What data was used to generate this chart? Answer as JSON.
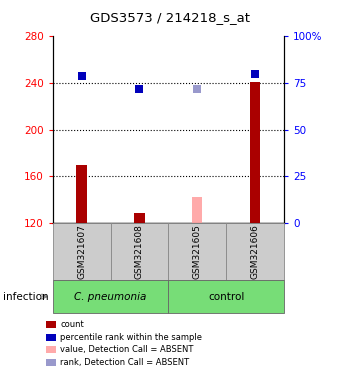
{
  "title": "GDS3573 / 214218_s_at",
  "samples": [
    "GSM321607",
    "GSM321608",
    "GSM321605",
    "GSM321606"
  ],
  "bar_values": [
    170,
    128,
    142,
    241
  ],
  "bar_colors": [
    "#aa0000",
    "#aa0000",
    "#ffaaaa",
    "#aa0000"
  ],
  "bar_absent": [
    false,
    false,
    true,
    false
  ],
  "percentile_values": [
    79,
    72,
    72,
    80
  ],
  "percentile_absent": [
    false,
    false,
    true,
    false
  ],
  "percentile_color_normal": "#0000bb",
  "percentile_color_absent": "#9999cc",
  "ylim_left": [
    120,
    280
  ],
  "ylim_right": [
    0,
    100
  ],
  "yticks_left": [
    120,
    160,
    200,
    240,
    280
  ],
  "yticks_right": [
    0,
    25,
    50,
    75,
    100
  ],
  "group_bg_color": "#cccccc",
  "group_green": "#77dd77",
  "infection_label": "infection",
  "legend_items": [
    {
      "label": "count",
      "color": "#aa0000"
    },
    {
      "label": "percentile rank within the sample",
      "color": "#0000bb"
    },
    {
      "label": "value, Detection Call = ABSENT",
      "color": "#ffaaaa"
    },
    {
      "label": "rank, Detection Call = ABSENT",
      "color": "#9999cc"
    }
  ],
  "bar_width": 0.18,
  "square_size": 6,
  "dotted_yticks": [
    160,
    200,
    240
  ]
}
